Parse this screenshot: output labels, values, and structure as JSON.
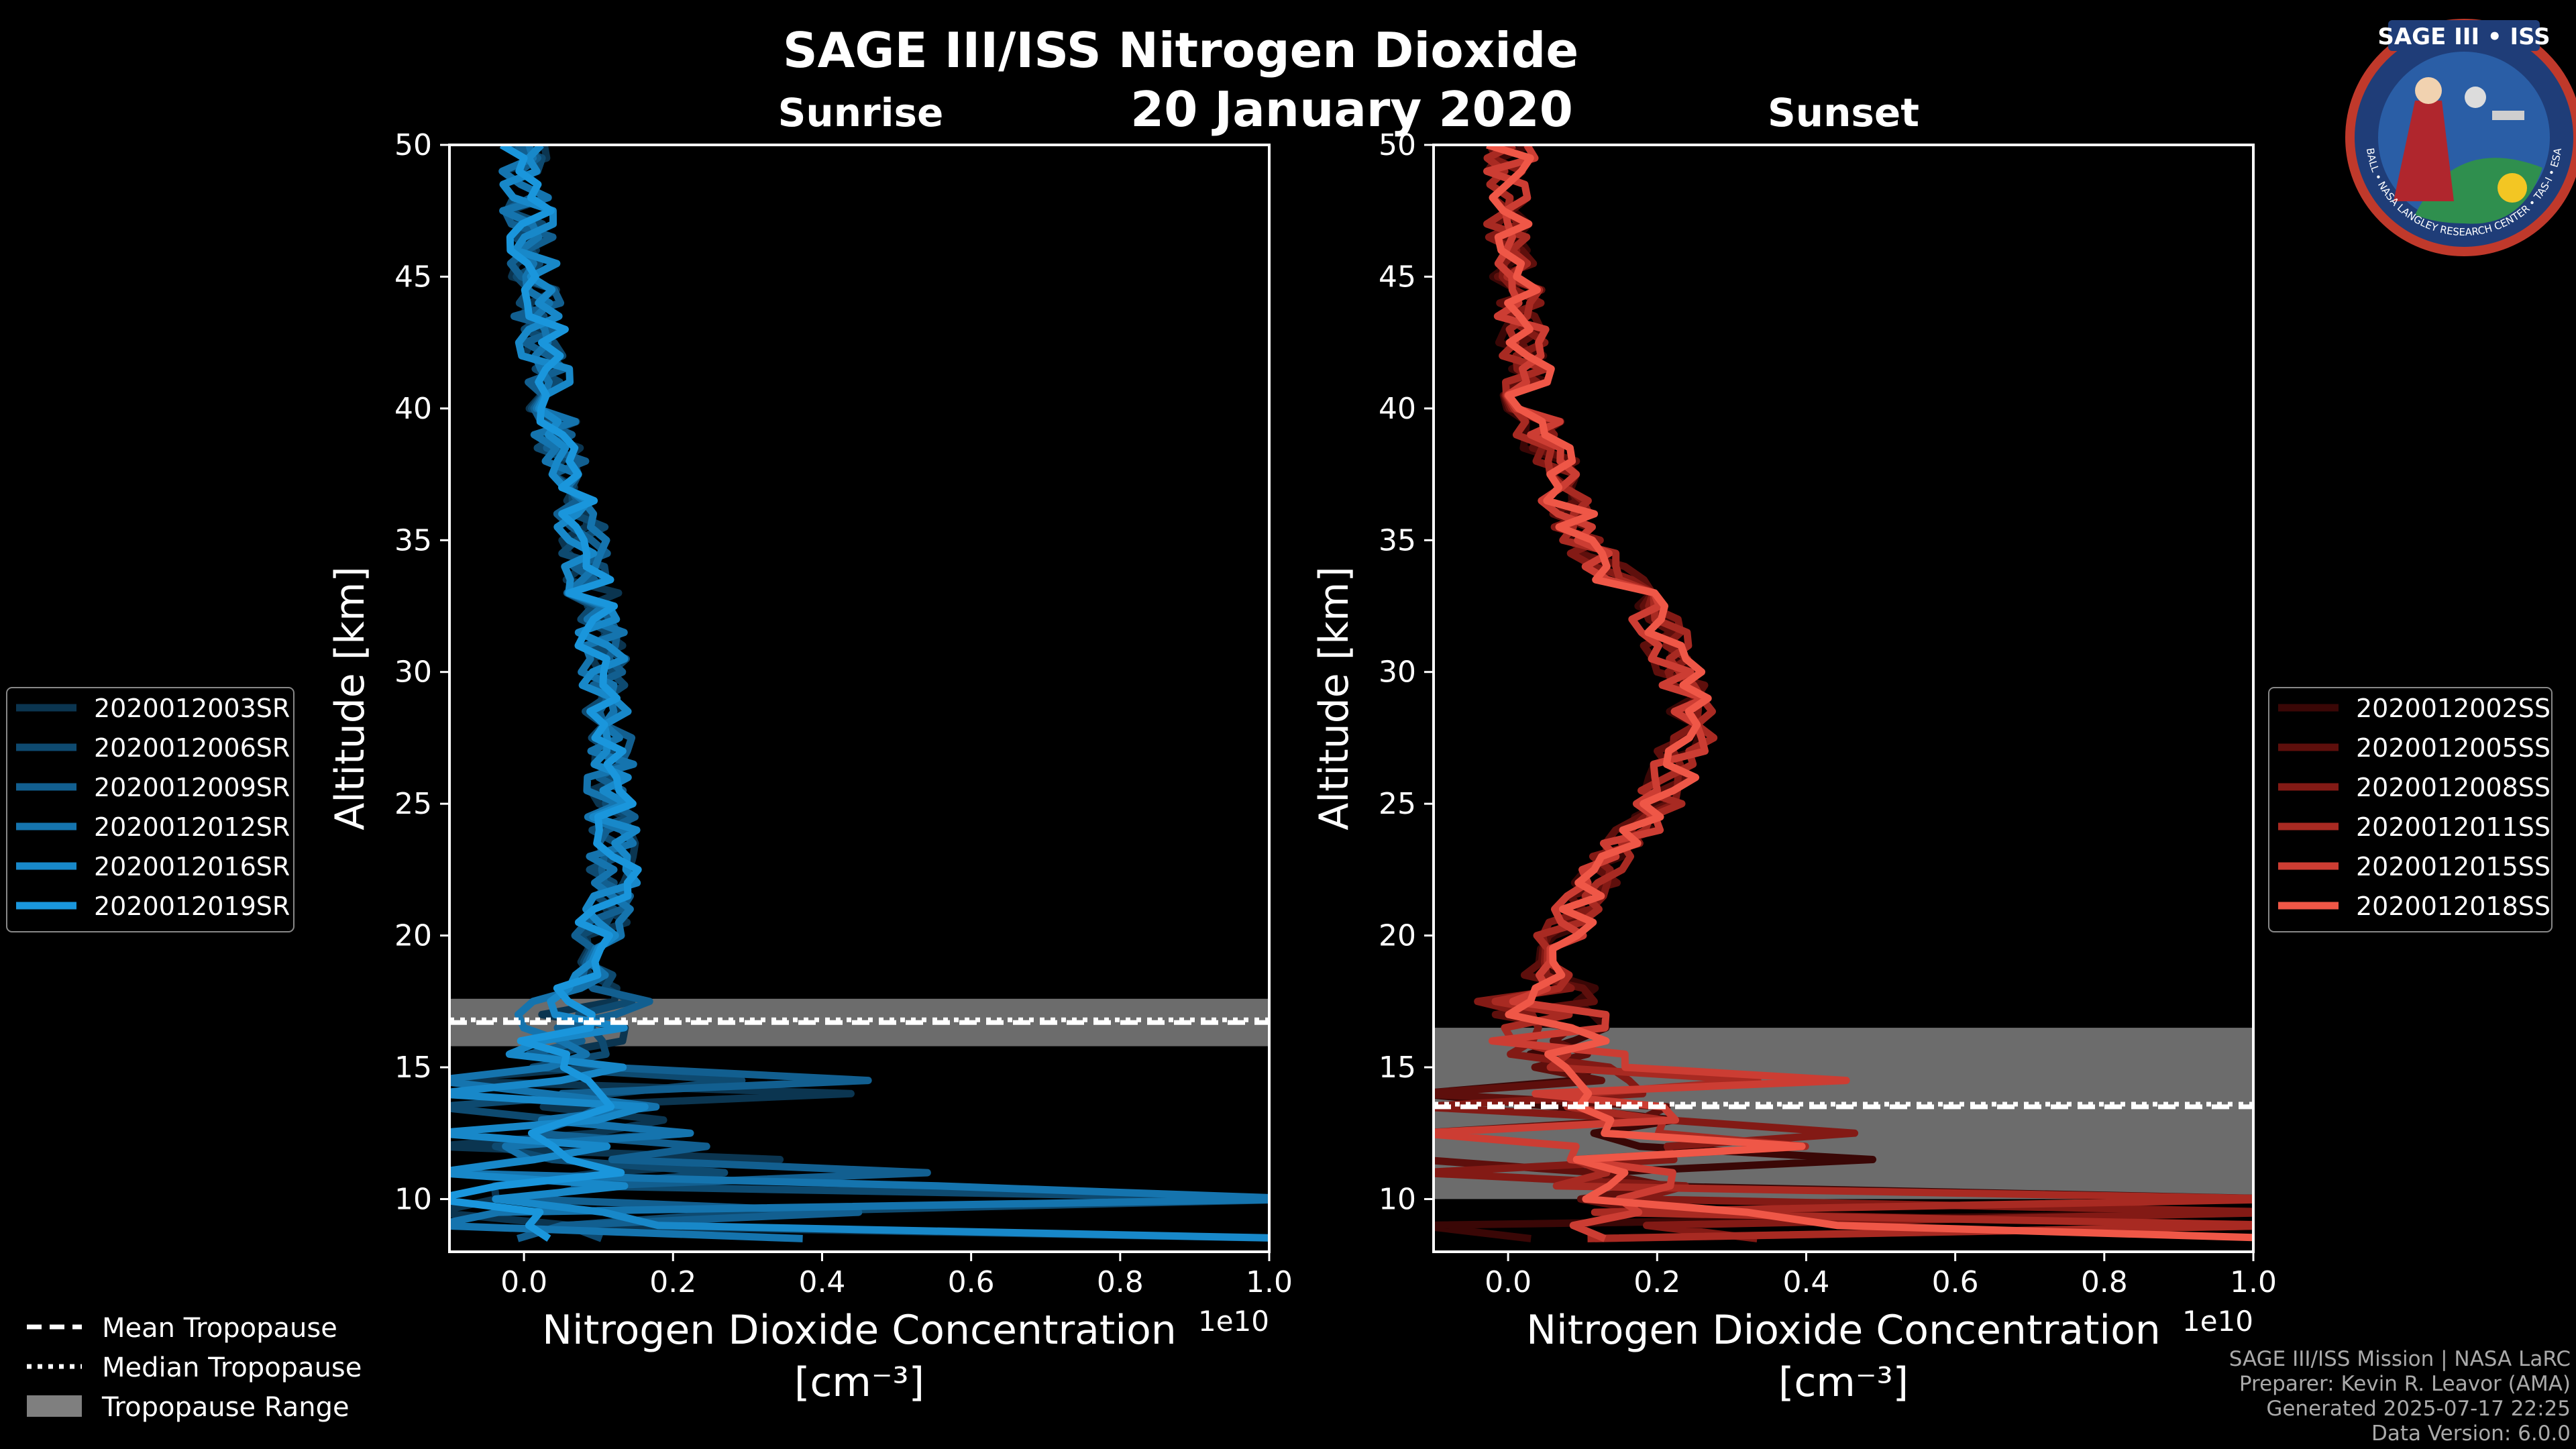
{
  "header": {
    "title": "SAGE III/ISS Nitrogen Dioxide",
    "date": "20 January 2020",
    "sunrise_label": "Sunrise",
    "sunset_label": "Sunset"
  },
  "logo": {
    "text": "SAGE III • ISS",
    "ring_text": "BALL • NASA LANGLEY RESEARCH CENTER • TAS-I • ESA"
  },
  "footer": {
    "mission": "SAGE III/ISS Mission | NASA LaRC",
    "preparer": "Preparer: Kevin R. Leavor (AMA)",
    "generated": "Generated 2025-07-17 22:25",
    "version": "Data Version: 6.0.0"
  },
  "tropopause_legend": {
    "mean": "Mean Tropopause",
    "median": "Median Tropopause",
    "range": "Tropopause Range"
  },
  "chart_data": [
    {
      "type": "line",
      "title": "Sunrise",
      "xlabel": "Nitrogen Dioxide Concentration",
      "xunit": "[cm⁻³]",
      "ylabel": "Altitude [km]",
      "xlim": [
        -0.1,
        1.0
      ],
      "ylim": [
        8,
        50
      ],
      "x_ticks": [
        "0.0",
        "0.2",
        "0.4",
        "0.6",
        "0.8",
        "1.0"
      ],
      "y_ticks": [
        "10",
        "15",
        "20",
        "25",
        "30",
        "35",
        "40",
        "45",
        "50"
      ],
      "x_multiplier": "1e10",
      "tropopause": {
        "mean": 16.7,
        "median": 16.8,
        "range": [
          15.8,
          17.6
        ]
      },
      "legend": [
        "2020012003SR",
        "2020012006SR",
        "2020012009SR",
        "2020012012SR",
        "2020012016SR",
        "2020012019SR"
      ],
      "colors": [
        "#0b3550",
        "#0e4a70",
        "#125f90",
        "#1574ae",
        "#1888c9",
        "#1a96dc"
      ],
      "profile_anchors": {
        "altitude_km": [
          50,
          45,
          40,
          35,
          30,
          25,
          22,
          20,
          18,
          16,
          14,
          12,
          10,
          8.5
        ],
        "concentration_1e10": [
          0.0,
          0.01,
          0.04,
          0.08,
          0.11,
          0.12,
          0.12,
          0.1,
          0.1,
          0.05,
          0.12,
          0.05,
          0.05,
          0.05
        ]
      }
    },
    {
      "type": "line",
      "title": "Sunset",
      "xlabel": "Nitrogen Dioxide Concentration",
      "xunit": "[cm⁻³]",
      "ylabel": "Altitude [km]",
      "xlim": [
        -0.1,
        1.0
      ],
      "ylim": [
        8,
        50
      ],
      "x_ticks": [
        "0.0",
        "0.2",
        "0.4",
        "0.6",
        "0.8",
        "1.0"
      ],
      "y_ticks": [
        "10",
        "15",
        "20",
        "25",
        "30",
        "35",
        "40",
        "45",
        "50"
      ],
      "x_multiplier": "1e10",
      "tropopause": {
        "mean": 13.5,
        "median": 13.6,
        "range": [
          10.0,
          16.5
        ]
      },
      "legend": [
        "2020012002SS",
        "2020012005SS",
        "2020012008SS",
        "2020012011SS",
        "2020012015SS",
        "2020012018SS"
      ],
      "colors": [
        "#3a0706",
        "#5e0f0c",
        "#831a15",
        "#a82a22",
        "#cc3d33",
        "#ef5747"
      ],
      "profile_anchors": {
        "altitude_km": [
          50,
          45,
          40,
          35,
          32,
          30,
          28,
          25,
          22,
          20,
          18,
          16,
          14,
          12,
          10,
          8.5
        ],
        "concentration_1e10": [
          0.0,
          0.01,
          0.03,
          0.1,
          0.2,
          0.23,
          0.25,
          0.2,
          0.12,
          0.07,
          0.04,
          0.06,
          0.12,
          0.15,
          0.15,
          0.1
        ]
      }
    }
  ]
}
